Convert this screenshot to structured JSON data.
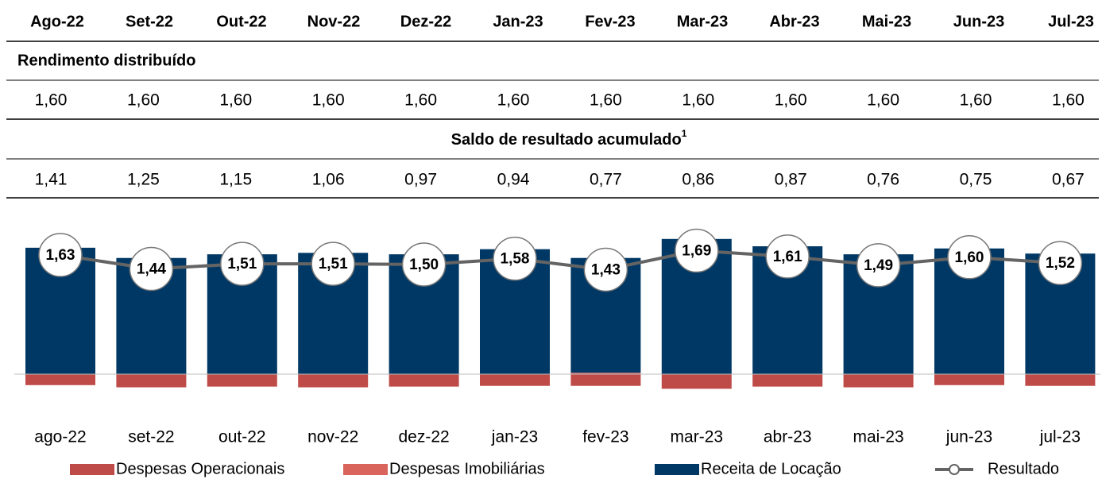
{
  "table": {
    "headers": [
      "Ago-22",
      "Set-22",
      "Out-22",
      "Nov-22",
      "Dez-22",
      "Jan-23",
      "Fev-23",
      "Mar-23",
      "Abr-23",
      "Mai-23",
      "Jun-23",
      "Jul-23"
    ],
    "sections": [
      {
        "title": "Rendimento distribuído",
        "values": [
          "1,60",
          "1,60",
          "1,60",
          "1,60",
          "1,60",
          "1,60",
          "1,60",
          "1,60",
          "1,60",
          "1,60",
          "1,60",
          "1,60"
        ]
      },
      {
        "title": "Saldo de resultado acumulado",
        "footnote": "1",
        "values": [
          "1,41",
          "1,25",
          "1,15",
          "1,06",
          "0,97",
          "0,94",
          "0,77",
          "0,86",
          "0,87",
          "0,76",
          "0,75",
          "0,67"
        ]
      }
    ]
  },
  "chart_data": {
    "type": "bar",
    "categories": [
      "ago-22",
      "set-22",
      "out-22",
      "nov-22",
      "dez-22",
      "jan-23",
      "fev-23",
      "mar-23",
      "abr-23",
      "mai-23",
      "jun-23",
      "jul-23"
    ],
    "ylim": [
      -0.3,
      1.9
    ],
    "series": [
      {
        "name": "Despesas Operacionais",
        "color": "#be4b48",
        "values": [
          -0.15,
          -0.18,
          -0.17,
          -0.18,
          -0.17,
          -0.16,
          -0.16,
          -0.2,
          -0.17,
          -0.18,
          -0.15,
          -0.16
        ]
      },
      {
        "name": "Despesas Imobiliárias",
        "color": "#d9645c",
        "values": [
          0,
          0,
          0,
          0,
          0,
          0,
          0.02,
          0,
          0,
          0,
          0,
          0
        ]
      },
      {
        "name": "Receita de Locação",
        "color": "#003865",
        "values": [
          1.73,
          1.59,
          1.64,
          1.66,
          1.64,
          1.71,
          1.57,
          1.85,
          1.75,
          1.64,
          1.72,
          1.65
        ]
      },
      {
        "name": "Resultado",
        "type": "line",
        "color": "#646464",
        "values": [
          1.63,
          1.44,
          1.51,
          1.51,
          1.5,
          1.58,
          1.43,
          1.69,
          1.61,
          1.49,
          1.6,
          1.52
        ],
        "value_labels": [
          "1,63",
          "1,44",
          "1,51",
          "1,51",
          "1,50",
          "1,58",
          "1,43",
          "1,69",
          "1,61",
          "1,49",
          "1,60",
          "1,52"
        ]
      }
    ]
  }
}
